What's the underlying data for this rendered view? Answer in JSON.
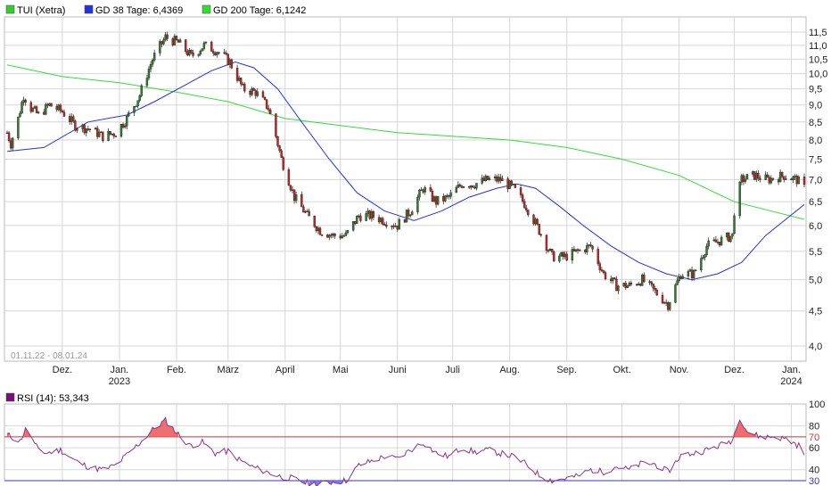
{
  "colors": {
    "price_legend": "#33cc33",
    "gd38": "#2233dd",
    "gd200": "#33dd33",
    "candle_up": "#2f7d2f",
    "candle_down": "#cc2222",
    "rsi_line": "#883388",
    "rsi_legend": "#771177",
    "rsi_over": "#ee5555",
    "rsi_under": "#6666ee",
    "grid": "#d6d6d6"
  },
  "chart_data": [
    {
      "type": "candlestick",
      "legend": [
        {
          "label": "TUI (Xetra)",
          "color": "#33cc33"
        },
        {
          "label": "GD 38 Tage: 6,4369",
          "color": "#2233dd"
        },
        {
          "label": "GD 200 Tage: 6,1242",
          "color": "#33dd33"
        }
      ],
      "date_range": "01.11.22 - 08.01.24",
      "y_scale": "log",
      "ylim": [
        3.95,
        12.0
      ],
      "y_ticks": [
        "11,5",
        "11,0",
        "10,5",
        "10,0",
        "9,5",
        "9,0",
        "8,5",
        "8,0",
        "7,5",
        "7,0",
        "6,5",
        "6,0",
        "5,5",
        "5,0",
        "4,5",
        "4,0"
      ],
      "x_ticks": [
        {
          "label": "Dez.",
          "sub": ""
        },
        {
          "label": "Jan.",
          "sub": "2023"
        },
        {
          "label": "Feb.",
          "sub": ""
        },
        {
          "label": "März",
          "sub": ""
        },
        {
          "label": "April",
          "sub": ""
        },
        {
          "label": "Mai",
          "sub": ""
        },
        {
          "label": "Juni",
          "sub": ""
        },
        {
          "label": "Juli",
          "sub": ""
        },
        {
          "label": "Aug.",
          "sub": ""
        },
        {
          "label": "Sep.",
          "sub": ""
        },
        {
          "label": "Okt.",
          "sub": ""
        },
        {
          "label": "Nov.",
          "sub": ""
        },
        {
          "label": "Dez.",
          "sub": ""
        },
        {
          "label": "Jan.",
          "sub": "2024"
        }
      ],
      "price_points": [
        [
          "2022-11-01",
          8.2
        ],
        [
          "2022-11-03",
          7.9
        ],
        [
          "2022-11-07",
          8.6
        ],
        [
          "2022-11-10",
          9.3
        ],
        [
          "2022-11-14",
          8.9
        ],
        [
          "2022-11-18",
          8.7
        ],
        [
          "2022-11-24",
          9.0
        ],
        [
          "2022-12-01",
          8.8
        ],
        [
          "2022-12-08",
          8.4
        ],
        [
          "2022-12-16",
          8.3
        ],
        [
          "2022-12-23",
          8.1
        ],
        [
          "2022-12-30",
          8.2
        ],
        [
          "2023-01-05",
          8.6
        ],
        [
          "2023-01-12",
          9.3
        ],
        [
          "2023-01-19",
          10.5
        ],
        [
          "2023-01-26",
          11.3
        ],
        [
          "2023-02-02",
          11.1
        ],
        [
          "2023-02-09",
          10.6
        ],
        [
          "2023-02-16",
          11.0
        ],
        [
          "2023-02-23",
          10.8
        ],
        [
          "2023-03-02",
          10.4
        ],
        [
          "2023-03-09",
          9.5
        ],
        [
          "2023-03-16",
          9.4
        ],
        [
          "2023-03-23",
          8.9
        ],
        [
          "2023-03-30",
          7.5
        ],
        [
          "2023-04-06",
          6.6
        ],
        [
          "2023-04-13",
          6.2
        ],
        [
          "2023-04-20",
          5.9
        ],
        [
          "2023-04-27",
          5.8
        ],
        [
          "2023-05-04",
          5.8
        ],
        [
          "2023-05-11",
          6.2
        ],
        [
          "2023-05-18",
          6.2
        ],
        [
          "2023-05-25",
          6.1
        ],
        [
          "2023-06-01",
          6.0
        ],
        [
          "2023-06-08",
          6.3
        ],
        [
          "2023-06-15",
          6.8
        ],
        [
          "2023-06-22",
          6.5
        ],
        [
          "2023-06-29",
          6.6
        ],
        [
          "2023-07-06",
          6.9
        ],
        [
          "2023-07-13",
          6.9
        ],
        [
          "2023-07-20",
          7.0
        ],
        [
          "2023-07-27",
          7.0
        ],
        [
          "2023-08-03",
          6.8
        ],
        [
          "2023-08-10",
          6.4
        ],
        [
          "2023-08-17",
          5.9
        ],
        [
          "2023-08-24",
          5.4
        ],
        [
          "2023-08-31",
          5.4
        ],
        [
          "2023-09-07",
          5.5
        ],
        [
          "2023-09-14",
          5.6
        ],
        [
          "2023-09-21",
          5.1
        ],
        [
          "2023-09-28",
          4.9
        ],
        [
          "2023-10-05",
          4.9
        ],
        [
          "2023-10-12",
          5.0
        ],
        [
          "2023-10-19",
          4.8
        ],
        [
          "2023-10-26",
          4.6
        ],
        [
          "2023-11-02",
          5.1
        ],
        [
          "2023-11-09",
          5.1
        ],
        [
          "2023-11-16",
          5.6
        ],
        [
          "2023-11-23",
          5.7
        ],
        [
          "2023-11-30",
          5.8
        ],
        [
          "2023-12-01",
          6.3
        ],
        [
          "2023-12-05",
          7.0
        ],
        [
          "2023-12-12",
          7.1
        ],
        [
          "2023-12-19",
          7.0
        ],
        [
          "2023-12-28",
          7.1
        ],
        [
          "2024-01-04",
          7.0
        ],
        [
          "2024-01-08",
          6.8
        ]
      ],
      "gd38_points": [
        [
          "2022-11-01",
          7.7
        ],
        [
          "2022-11-21",
          7.8
        ],
        [
          "2022-12-15",
          8.5
        ],
        [
          "2023-01-05",
          8.7
        ],
        [
          "2023-01-20",
          9.1
        ],
        [
          "2023-02-05",
          9.6
        ],
        [
          "2023-02-20",
          10.1
        ],
        [
          "2023-03-05",
          10.4
        ],
        [
          "2023-03-15",
          10.2
        ],
        [
          "2023-03-28",
          9.5
        ],
        [
          "2023-04-10",
          8.5
        ],
        [
          "2023-04-25",
          7.5
        ],
        [
          "2023-05-10",
          6.7
        ],
        [
          "2023-05-25",
          6.3
        ],
        [
          "2023-06-10",
          6.1
        ],
        [
          "2023-06-25",
          6.3
        ],
        [
          "2023-07-10",
          6.6
        ],
        [
          "2023-07-25",
          6.8
        ],
        [
          "2023-08-05",
          6.9
        ],
        [
          "2023-08-15",
          6.8
        ],
        [
          "2023-08-28",
          6.4
        ],
        [
          "2023-09-10",
          6.0
        ],
        [
          "2023-09-25",
          5.6
        ],
        [
          "2023-10-10",
          5.3
        ],
        [
          "2023-10-25",
          5.1
        ],
        [
          "2023-11-08",
          5.0
        ],
        [
          "2023-11-22",
          5.1
        ],
        [
          "2023-12-05",
          5.3
        ],
        [
          "2023-12-18",
          5.8
        ],
        [
          "2024-01-08",
          6.4369
        ]
      ],
      "gd200_points": [
        [
          "2022-11-01",
          10.3
        ],
        [
          "2022-12-01",
          9.9
        ],
        [
          "2023-01-01",
          9.7
        ],
        [
          "2023-02-01",
          9.4
        ],
        [
          "2023-03-01",
          9.1
        ],
        [
          "2023-04-01",
          8.6
        ],
        [
          "2023-05-01",
          8.4
        ],
        [
          "2023-06-01",
          8.2
        ],
        [
          "2023-07-01",
          8.1
        ],
        [
          "2023-08-01",
          8.0
        ],
        [
          "2023-09-01",
          7.8
        ],
        [
          "2023-10-01",
          7.5
        ],
        [
          "2023-11-01",
          7.1
        ],
        [
          "2023-12-01",
          6.5
        ],
        [
          "2024-01-08",
          6.1242
        ]
      ]
    },
    {
      "type": "line",
      "legend": [
        {
          "label": "RSI (14): 53,343",
          "color": "#771177"
        }
      ],
      "ylim": [
        30,
        100
      ],
      "y_ticks": [
        "100",
        "80",
        "70",
        "60",
        "40",
        "30"
      ],
      "reference_lines": [
        70,
        30
      ],
      "rsi_points": [
        [
          "2022-11-01",
          72
        ],
        [
          "2022-11-08",
          66
        ],
        [
          "2022-11-12",
          80
        ],
        [
          "2022-11-16",
          62
        ],
        [
          "2022-11-22",
          55
        ],
        [
          "2022-11-30",
          58
        ],
        [
          "2022-12-08",
          48
        ],
        [
          "2022-12-16",
          42
        ],
        [
          "2022-12-23",
          40
        ],
        [
          "2022-12-30",
          44
        ],
        [
          "2023-01-06",
          55
        ],
        [
          "2023-01-13",
          66
        ],
        [
          "2023-01-20",
          78
        ],
        [
          "2023-01-26",
          85
        ],
        [
          "2023-02-01",
          74
        ],
        [
          "2023-02-08",
          62
        ],
        [
          "2023-02-15",
          65
        ],
        [
          "2023-02-22",
          55
        ],
        [
          "2023-03-01",
          57
        ],
        [
          "2023-03-08",
          48
        ],
        [
          "2023-03-15",
          42
        ],
        [
          "2023-03-22",
          38
        ],
        [
          "2023-03-29",
          34
        ],
        [
          "2023-04-05",
          32
        ],
        [
          "2023-04-12",
          28
        ],
        [
          "2023-04-20",
          27
        ],
        [
          "2023-04-27",
          29
        ],
        [
          "2023-05-04",
          30
        ],
        [
          "2023-05-11",
          44
        ],
        [
          "2023-05-18",
          48
        ],
        [
          "2023-05-25",
          52
        ],
        [
          "2023-06-01",
          50
        ],
        [
          "2023-06-08",
          58
        ],
        [
          "2023-06-15",
          65
        ],
        [
          "2023-06-22",
          55
        ],
        [
          "2023-06-29",
          52
        ],
        [
          "2023-07-06",
          60
        ],
        [
          "2023-07-13",
          56
        ],
        [
          "2023-07-20",
          58
        ],
        [
          "2023-07-27",
          55
        ],
        [
          "2023-08-03",
          52
        ],
        [
          "2023-08-10",
          45
        ],
        [
          "2023-08-17",
          35
        ],
        [
          "2023-08-24",
          30
        ],
        [
          "2023-08-31",
          32
        ],
        [
          "2023-09-07",
          34
        ],
        [
          "2023-09-14",
          40
        ],
        [
          "2023-09-21",
          38
        ],
        [
          "2023-09-28",
          43
        ],
        [
          "2023-10-05",
          40
        ],
        [
          "2023-10-12",
          46
        ],
        [
          "2023-10-19",
          45
        ],
        [
          "2023-10-26",
          38
        ],
        [
          "2023-11-02",
          53
        ],
        [
          "2023-11-09",
          55
        ],
        [
          "2023-11-16",
          58
        ],
        [
          "2023-11-23",
          62
        ],
        [
          "2023-11-30",
          67
        ],
        [
          "2023-12-04",
          88
        ],
        [
          "2023-12-08",
          75
        ],
        [
          "2023-12-15",
          70
        ],
        [
          "2023-12-22",
          70
        ],
        [
          "2023-12-29",
          68
        ],
        [
          "2024-01-05",
          62
        ],
        [
          "2024-01-08",
          53.343
        ]
      ]
    }
  ]
}
